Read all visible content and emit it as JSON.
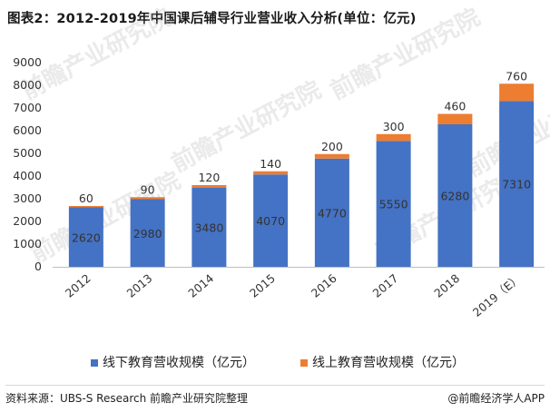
{
  "title": "图表2：2012-2019年中国课后辅导行业营业收入分析(单位：亿元)",
  "chart_data": {
    "type": "bar",
    "stacked": true,
    "categories": [
      "2012",
      "2013",
      "2014",
      "2015",
      "2016",
      "2017",
      "2018",
      "2019（E）"
    ],
    "series": [
      {
        "name": "线下教育营收规模（亿元）",
        "color": "#4472c4",
        "values": [
          2620,
          2980,
          3480,
          4070,
          4770,
          5550,
          6280,
          7310
        ]
      },
      {
        "name": "线上教育营收规模（亿元）",
        "color": "#ed7d31",
        "values": [
          60,
          90,
          120,
          140,
          200,
          300,
          460,
          760
        ]
      }
    ],
    "ylim": [
      0,
      9000
    ],
    "yticks": [
      "0",
      "1000",
      "2000",
      "3000",
      "4000",
      "5000",
      "6000",
      "7000",
      "8000",
      "9000"
    ],
    "grid": false,
    "legend_position": "bottom"
  },
  "watermark_text": "前瞻产业研究院",
  "footer": {
    "source": "资料来源：UBS-S Research 前瞻产业研究院整理",
    "brand": "@前瞻经济学人APP"
  }
}
